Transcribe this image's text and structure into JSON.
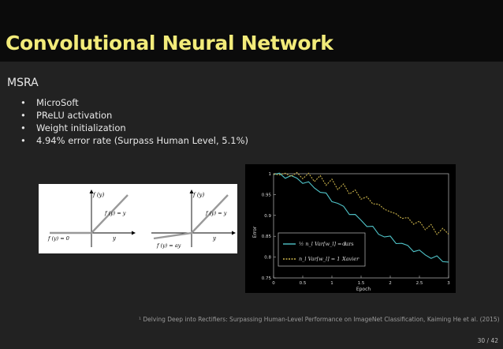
{
  "title": "Convolutional Neural Network",
  "section": "MSRA",
  "bullets": [
    "MicroSoft",
    "PReLU activation",
    "Weight initialization",
    "4.94% error rate (Surpass Human Level, 5.1%)"
  ],
  "relu_fig": {
    "axis_y": "f (y)",
    "axis_x": "y",
    "pos_label": "f (y) = y",
    "neg_label": "f (y) = 0"
  },
  "prelu_fig": {
    "axis_y": "f (y)",
    "axis_x": "y",
    "pos_label": "f (y) = y",
    "neg_label": "f (y) = ay"
  },
  "chart_data": {
    "type": "line",
    "xlabel": "Epoch",
    "ylabel": "Error",
    "xlim": [
      0,
      3
    ],
    "ylim": [
      0.75,
      1.0
    ],
    "xticks": [
      "0",
      "0.5",
      "1",
      "1.5",
      "2",
      "2.5",
      "3"
    ],
    "yticks": [
      "0.75",
      "0.8",
      "0.85",
      "0.9",
      "0.95",
      "1"
    ],
    "legend_position": "lower-left",
    "series": [
      {
        "name": "ours",
        "legend_formula": "½ n_l Var[w_l] = 1",
        "color": "#4fc3c8",
        "x": [
          0,
          0.1,
          0.2,
          0.3,
          0.4,
          0.5,
          0.6,
          0.7,
          0.8,
          0.9,
          1.0,
          1.1,
          1.2,
          1.3,
          1.4,
          1.5,
          1.6,
          1.7,
          1.8,
          1.9,
          2.0,
          2.1,
          2.2,
          2.3,
          2.4,
          2.5,
          2.6,
          2.7,
          2.8,
          2.9,
          3.0
        ],
        "values": [
          0.998,
          0.997,
          0.995,
          0.992,
          0.988,
          0.982,
          0.975,
          0.968,
          0.958,
          0.948,
          0.938,
          0.928,
          0.918,
          0.908,
          0.898,
          0.888,
          0.878,
          0.868,
          0.858,
          0.85,
          0.845,
          0.838,
          0.831,
          0.825,
          0.819,
          0.812,
          0.806,
          0.801,
          0.797,
          0.793,
          0.788
        ]
      },
      {
        "name": "Xavier",
        "legend_formula": "n_l Var[w_l] = 1",
        "color": "#c9b24a",
        "x": [
          0,
          0.1,
          0.2,
          0.3,
          0.4,
          0.5,
          0.6,
          0.7,
          0.8,
          0.9,
          1.0,
          1.1,
          1.2,
          1.3,
          1.4,
          1.5,
          1.6,
          1.7,
          1.8,
          1.9,
          2.0,
          2.1,
          2.2,
          2.3,
          2.4,
          2.5,
          2.6,
          2.7,
          2.8,
          2.9,
          3.0
        ],
        "values": [
          0.999,
          0.999,
          0.998,
          0.998,
          0.997,
          0.995,
          0.993,
          0.99,
          0.986,
          0.982,
          0.977,
          0.972,
          0.966,
          0.96,
          0.953,
          0.946,
          0.939,
          0.932,
          0.924,
          0.916,
          0.909,
          0.902,
          0.896,
          0.89,
          0.885,
          0.879,
          0.874,
          0.869,
          0.864,
          0.859,
          0.855
        ]
      }
    ]
  },
  "footnote": "¹ Delving Deep into Rectifiers: Surpassing Human-Level Performance on ImageNet Classification, Kaiming He et al. (2015)",
  "page_number": "30 / 42"
}
